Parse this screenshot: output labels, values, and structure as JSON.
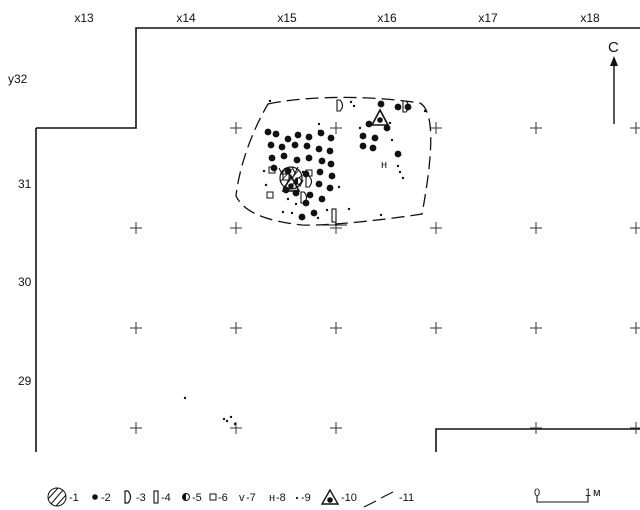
{
  "grid": {
    "x_labels": [
      "x13",
      "x14",
      "x15",
      "x16",
      "x17",
      "x18"
    ],
    "y_labels": [
      "y32",
      "31",
      "30",
      "29"
    ]
  },
  "north_label": "С",
  "legend": [
    {
      "number": "-1",
      "symbol": "hatched-circle"
    },
    {
      "number": "-2",
      "symbol": "filled-dot"
    },
    {
      "number": "-3",
      "symbol": "D-shape"
    },
    {
      "number": "-4",
      "symbol": "narrow-rectangle"
    },
    {
      "number": "-5",
      "symbol": "half-filled-circle"
    },
    {
      "number": "-6",
      "symbol": "small-square"
    },
    {
      "number": "-7",
      "symbol": "v-mark",
      "glyph": "v"
    },
    {
      "number": "-8",
      "symbol": "n-mark",
      "glyph": "н"
    },
    {
      "number": "-9",
      "symbol": "small-dot"
    },
    {
      "number": "-10",
      "symbol": "triangle-with-dot"
    },
    {
      "number": "-11",
      "symbol": "dashed-line"
    }
  ],
  "scale_bar": {
    "zero": "0",
    "one": "1",
    "unit": "м"
  }
}
